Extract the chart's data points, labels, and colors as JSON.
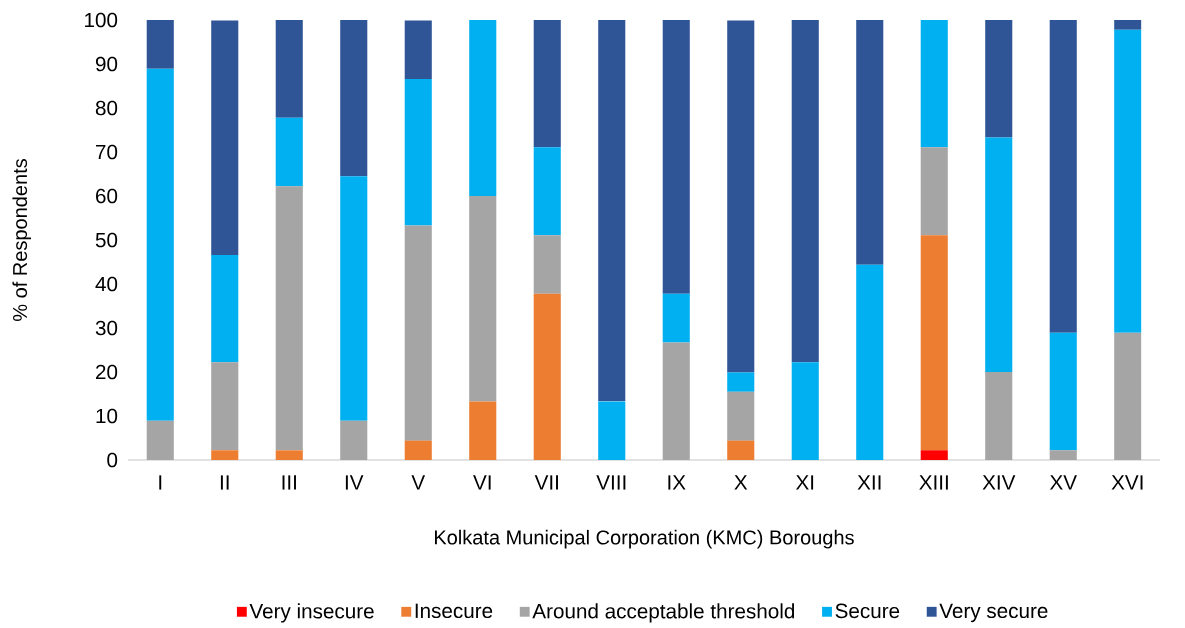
{
  "chart_data": {
    "type": "bar",
    "stacked": true,
    "xlabel": "Kolkata Municipal Corporation (KMC) Boroughs",
    "ylabel": "% of Respondents",
    "categories": [
      "I",
      "II",
      "III",
      "IV",
      "V",
      "VI",
      "VII",
      "VIII",
      "IX",
      "X",
      "XI",
      "XII",
      "XIII",
      "XIV",
      "XV",
      "XVI"
    ],
    "ylim": [
      0,
      100
    ],
    "yticks": [
      0,
      10,
      20,
      30,
      40,
      50,
      60,
      70,
      80,
      90,
      100
    ],
    "legend": "bottom",
    "series": [
      {
        "name": "Very insecure",
        "color": "#ff0000",
        "values": [
          0,
          0,
          0,
          0,
          0,
          0,
          0,
          0,
          0,
          0,
          0,
          0,
          2.2,
          0,
          0,
          0
        ]
      },
      {
        "name": "Insecure",
        "color": "#ed7d31",
        "values": [
          0,
          2.2,
          2.2,
          0,
          4.4,
          13.3,
          37.8,
          0,
          0,
          4.4,
          0,
          0,
          48.9,
          0,
          0,
          0
        ]
      },
      {
        "name": "Around acceptable threshold",
        "color": "#a5a5a5",
        "values": [
          8.9,
          20,
          60,
          8.9,
          48.9,
          46.7,
          13.3,
          0,
          26.7,
          11.1,
          0,
          0,
          20,
          20,
          2.2,
          28.9
        ]
      },
      {
        "name": "Secure",
        "color": "#00b0f0",
        "values": [
          80,
          24.4,
          15.6,
          55.6,
          33.3,
          40,
          20,
          13.3,
          11.1,
          4.4,
          22.2,
          44.4,
          28.9,
          53.3,
          26.7,
          68.9
        ]
      },
      {
        "name": "Very secure",
        "color": "#2f5597",
        "values": [
          11.1,
          53.3,
          22.2,
          35.6,
          13.3,
          0,
          28.9,
          86.7,
          62.2,
          80,
          77.8,
          55.6,
          0,
          26.7,
          71.1,
          2.2
        ]
      }
    ]
  }
}
